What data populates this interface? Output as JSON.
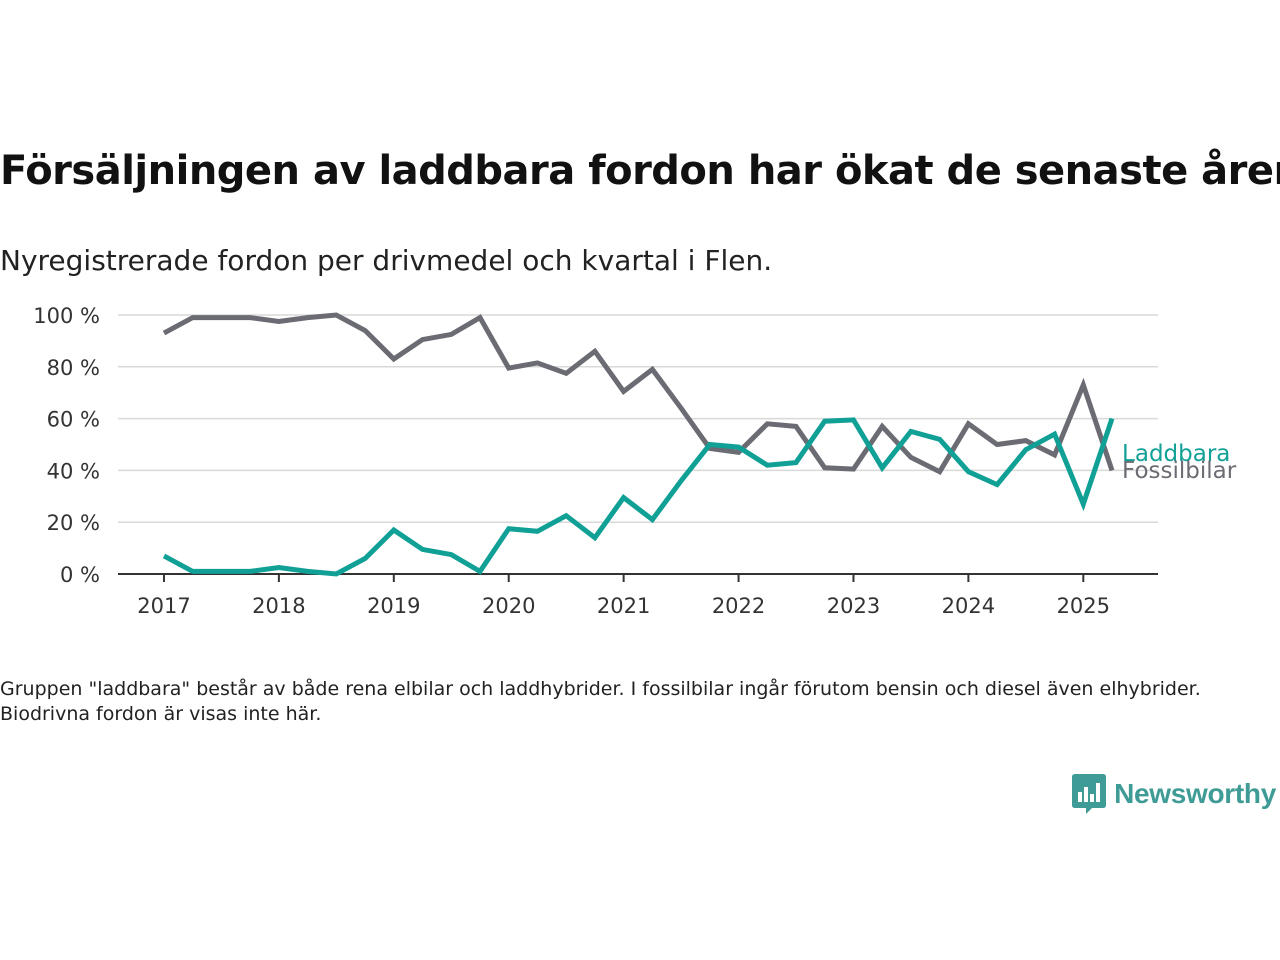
{
  "header": {
    "title": "Försäljningen av laddbara fordon har ökat de senaste åren",
    "subtitle": "Nyregistrerade fordon per drivmedel och kvartal i Flen."
  },
  "footer": {
    "note": "Gruppen \"laddbara\" består av både rena elbilar och laddhybrider. I fossilbilar ingår förutom bensin och diesel även elhybrider. Biodrivna fordon är visas inte här.",
    "brand": "Newsworthy"
  },
  "colors": {
    "laddbara": "#11a096",
    "fossilbilar": "#6b6b73",
    "brand": "#3f9b95",
    "grid": "#d9d9d9",
    "axis": "#333333"
  },
  "chart_data": {
    "type": "line",
    "title": "Försäljningen av laddbara fordon har ökat de senaste åren",
    "subtitle": "Nyregistrerade fordon per drivmedel och kvartal i Flen.",
    "xlabel": "",
    "ylabel": "",
    "x": [
      2017.0,
      2017.25,
      2017.5,
      2017.75,
      2018.0,
      2018.25,
      2018.5,
      2018.75,
      2019.0,
      2019.25,
      2019.5,
      2019.75,
      2020.0,
      2020.25,
      2020.5,
      2020.75,
      2021.0,
      2021.25,
      2021.5,
      2021.75,
      2022.0,
      2022.25,
      2022.5,
      2022.75,
      2023.0,
      2023.25,
      2023.5,
      2023.75,
      2024.0,
      2024.25,
      2024.5,
      2024.75,
      2025.0,
      2025.25
    ],
    "xlim": [
      2016.6,
      2025.65
    ],
    "xticks": [
      "2017",
      "2018",
      "2019",
      "2020",
      "2021",
      "2022",
      "2023",
      "2024",
      "2025"
    ],
    "ylim": [
      0,
      100
    ],
    "yticks": [
      "0 %",
      "20 %",
      "40 %",
      "60 %",
      "80 %",
      "100 %"
    ],
    "grid": true,
    "legend": "inline labels at end of lines (right)",
    "series": [
      {
        "name": "Laddbara",
        "color": "#11a096",
        "values": [
          7,
          1,
          1,
          1,
          2.5,
          1,
          0,
          6,
          17,
          9.5,
          7.5,
          1,
          17.5,
          16.5,
          22.5,
          14,
          29.5,
          21,
          36,
          50,
          49,
          42,
          43,
          59,
          59.5,
          41,
          55,
          52,
          39.5,
          34.5,
          48,
          54,
          27,
          60
        ]
      },
      {
        "name": "Fossilbilar",
        "color": "#6b6b73",
        "values": [
          93,
          99,
          99,
          99,
          97.5,
          99,
          100,
          94,
          83,
          90.5,
          92.5,
          99,
          79.5,
          81.5,
          77.5,
          86,
          70.5,
          79,
          64,
          48.5,
          47,
          58,
          57,
          41,
          40.5,
          57,
          45,
          39.5,
          58,
          50,
          51.5,
          46,
          73,
          40
        ]
      }
    ]
  }
}
